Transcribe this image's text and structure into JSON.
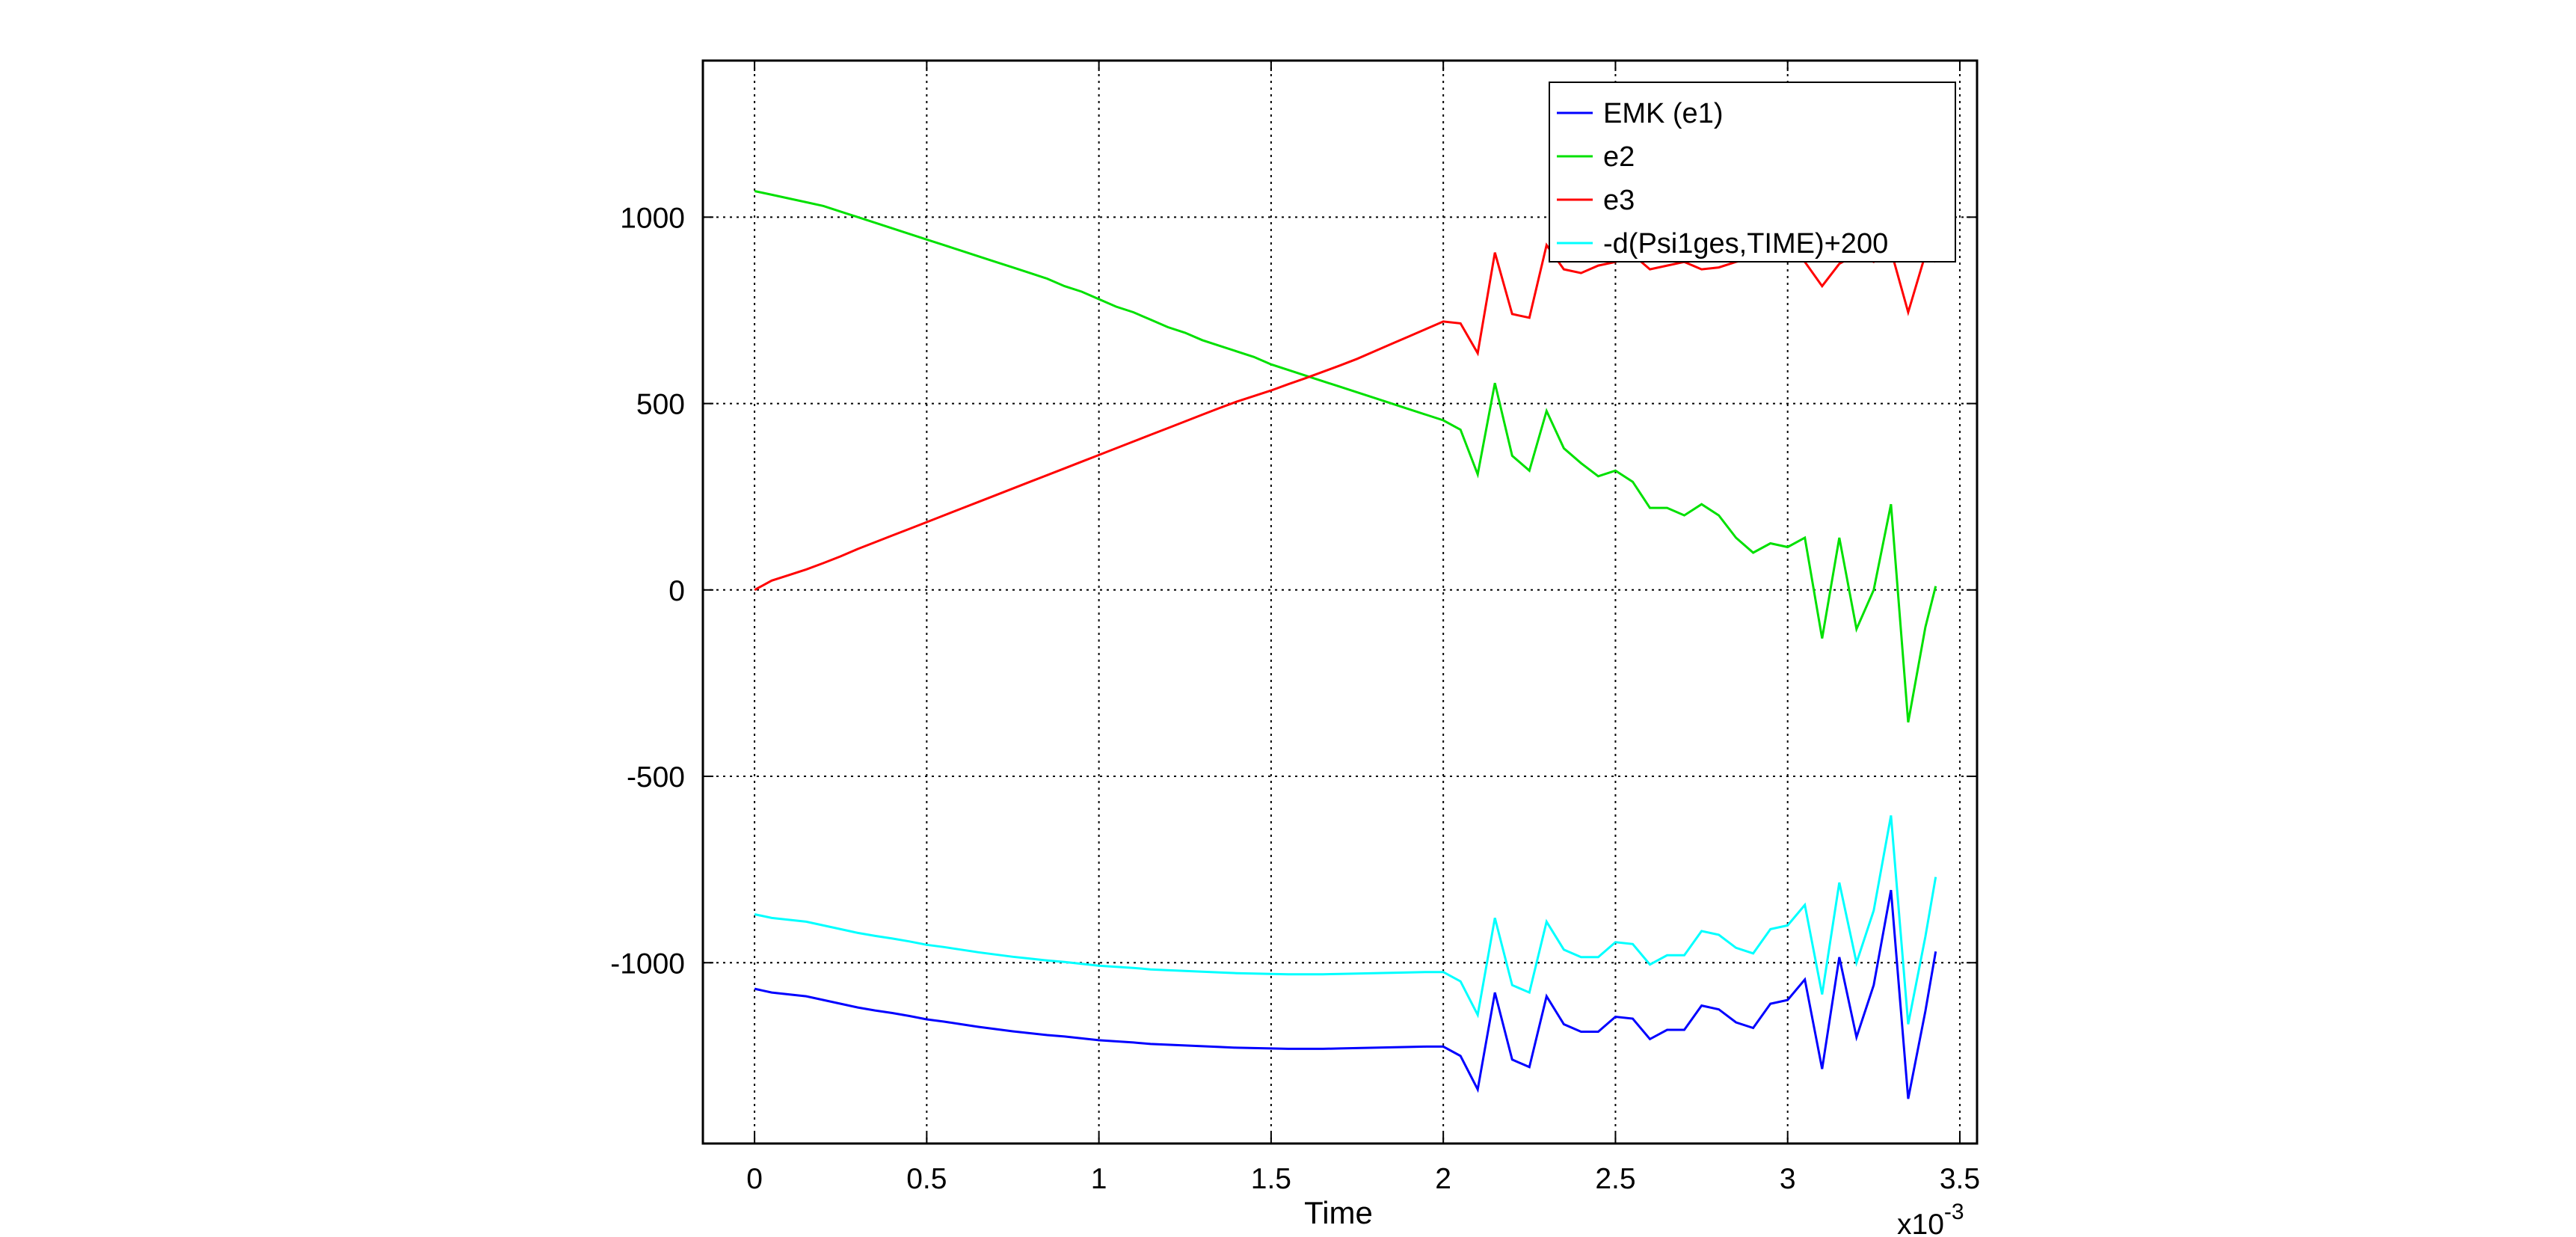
{
  "chart_data": {
    "type": "line",
    "title": "",
    "xlabel": "Time",
    "ylabel": "",
    "x_scale_label": "x10",
    "x_scale_exponent": "-3",
    "xlim": [
      -0.15,
      3.55
    ],
    "ylim": [
      -1485,
      1420
    ],
    "x_ticks": [
      0,
      0.5,
      1,
      1.5,
      2,
      2.5,
      3,
      3.5
    ],
    "x_tick_labels": [
      "0",
      "0.5",
      "1",
      "1.5",
      "2",
      "2.5",
      "3",
      "3.5"
    ],
    "y_ticks": [
      -1000,
      -500,
      0,
      500,
      1000
    ],
    "y_tick_labels": [
      "-1000",
      "-500",
      "0",
      "500",
      "1000"
    ],
    "grid": true,
    "legend_position": "top-right",
    "x": [
      0.0,
      0.05,
      0.1,
      0.15,
      0.2,
      0.25,
      0.3,
      0.35,
      0.4,
      0.45,
      0.5,
      0.55,
      0.6,
      0.65,
      0.7,
      0.75,
      0.8,
      0.85,
      0.9,
      0.95,
      1.0,
      1.05,
      1.1,
      1.15,
      1.2,
      1.25,
      1.3,
      1.35,
      1.4,
      1.45,
      1.5,
      1.55,
      1.6,
      1.65,
      1.7,
      1.75,
      1.8,
      1.85,
      1.9,
      1.95,
      2.0,
      2.05,
      2.1,
      2.15,
      2.2,
      2.25,
      2.3,
      2.35,
      2.4,
      2.45,
      2.5,
      2.55,
      2.6,
      2.65,
      2.7,
      2.75,
      2.8,
      2.85,
      2.9,
      2.95,
      3.0,
      3.05,
      3.1,
      3.15,
      3.2,
      3.25,
      3.3,
      3.35,
      3.4,
      3.43
    ],
    "series": [
      {
        "name": "EMK (e1)",
        "color": "#0000ff",
        "values": [
          -1070,
          -1080,
          -1085,
          -1090,
          -1100,
          -1110,
          -1120,
          -1128,
          -1135,
          -1143,
          -1152,
          -1158,
          -1165,
          -1172,
          -1178,
          -1184,
          -1189,
          -1194,
          -1198,
          -1203,
          -1208,
          -1211,
          -1214,
          -1218,
          -1220,
          -1222,
          -1224,
          -1226,
          -1228,
          -1229,
          -1230,
          -1231,
          -1231,
          -1231,
          -1230,
          -1229,
          -1228,
          -1227,
          -1226,
          -1225,
          -1225,
          -1250,
          -1340,
          -1080,
          -1260,
          -1280,
          -1090,
          -1165,
          -1185,
          -1185,
          -1145,
          -1150,
          -1205,
          -1180,
          -1180,
          -1115,
          -1125,
          -1160,
          -1175,
          -1110,
          -1100,
          -1045,
          -1285,
          -985,
          -1200,
          -1060,
          -805,
          -1365,
          -1130,
          -970
        ]
      },
      {
        "name": "e2",
        "color": "#00e000",
        "values": [
          1070,
          1060,
          1050,
          1040,
          1030,
          1015,
          1000,
          985,
          970,
          955,
          940,
          925,
          910,
          895,
          880,
          865,
          850,
          835,
          815,
          800,
          780,
          760,
          745,
          725,
          705,
          690,
          670,
          655,
          640,
          625,
          605,
          590,
          575,
          560,
          545,
          530,
          515,
          500,
          485,
          470,
          455,
          430,
          310,
          555,
          360,
          320,
          480,
          380,
          340,
          305,
          320,
          290,
          220,
          220,
          200,
          230,
          200,
          140,
          100,
          125,
          115,
          140,
          -130,
          140,
          -105,
          0,
          230,
          -355,
          -100,
          10
        ]
      },
      {
        "name": "e3",
        "color": "#ff0000",
        "values": [
          0,
          25,
          40,
          55,
          72,
          90,
          110,
          128,
          146,
          164,
          182,
          200,
          218,
          236,
          254,
          272,
          290,
          308,
          326,
          344,
          362,
          380,
          398,
          416,
          434,
          452,
          470,
          488,
          505,
          520,
          535,
          552,
          568,
          585,
          602,
          620,
          640,
          660,
          680,
          700,
          720,
          715,
          635,
          905,
          740,
          730,
          925,
          860,
          850,
          870,
          880,
          900,
          860,
          870,
          880,
          860,
          865,
          880,
          890,
          900,
          920,
          880,
          815,
          875,
          900,
          880,
          910,
          745,
          900,
          880
        ]
      },
      {
        "name": "-d(Psi1ges,TIME)+200",
        "color": "#00ffff",
        "values": [
          -870,
          -880,
          -885,
          -890,
          -900,
          -910,
          -920,
          -928,
          -935,
          -943,
          -952,
          -958,
          -965,
          -972,
          -978,
          -984,
          -989,
          -994,
          -998,
          -1003,
          -1008,
          -1011,
          -1014,
          -1018,
          -1020,
          -1022,
          -1024,
          -1026,
          -1028,
          -1029,
          -1030,
          -1031,
          -1031,
          -1031,
          -1030,
          -1029,
          -1028,
          -1027,
          -1026,
          -1025,
          -1025,
          -1050,
          -1140,
          -880,
          -1060,
          -1080,
          -890,
          -965,
          -985,
          -985,
          -945,
          -950,
          -1005,
          -980,
          -980,
          -915,
          -925,
          -960,
          -975,
          -910,
          -900,
          -845,
          -1085,
          -785,
          -1000,
          -860,
          -605,
          -1165,
          -930,
          -770
        ]
      }
    ]
  }
}
